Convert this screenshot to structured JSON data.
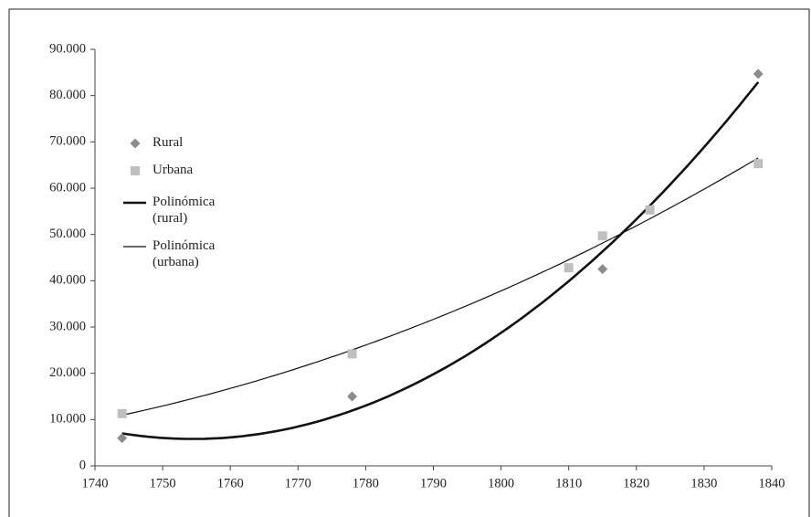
{
  "chart_data": {
    "type": "scatter",
    "series": [
      {
        "name": "Rural",
        "color": "#8c8c8c",
        "marker": "diamond",
        "x": [
          1744,
          1778,
          1815,
          1838
        ],
        "values": [
          6000,
          15000,
          42500,
          84700
        ]
      },
      {
        "name": "Urbana",
        "color": "#bfbfbf",
        "marker": "square",
        "x": [
          1744,
          1778,
          1810,
          1815,
          1822,
          1838
        ],
        "values": [
          11300,
          24200,
          42800,
          49700,
          55300,
          65300
        ]
      }
    ],
    "trendlines": [
      {
        "name": "Polinómica (rural)",
        "of": 0,
        "order": 2,
        "color": "#111111",
        "width": 2.6
      },
      {
        "name": "Polinómica (urbana)",
        "of": 1,
        "order": 2,
        "color": "#111111",
        "width": 1.2
      }
    ],
    "xlim": [
      1740,
      1840
    ],
    "xticks": [
      1740,
      1750,
      1760,
      1770,
      1780,
      1790,
      1800,
      1810,
      1820,
      1830,
      1840
    ],
    "ylim": [
      0,
      90000
    ],
    "yticks": [
      0,
      {
        "value": 10000,
        "label": "10.000"
      },
      {
        "value": 20000,
        "label": "20.000"
      },
      {
        "value": 30000,
        "label": "30.000"
      },
      {
        "value": 40000,
        "label": "40.000"
      },
      {
        "value": 50000,
        "label": "50.000"
      },
      {
        "value": 60000,
        "label": "60.000"
      },
      {
        "value": 70000,
        "label": "70.000"
      },
      {
        "value": 80000,
        "label": "80.000"
      },
      {
        "value": 90000,
        "label": "90.000"
      }
    ],
    "grid": false,
    "legend": "left"
  }
}
